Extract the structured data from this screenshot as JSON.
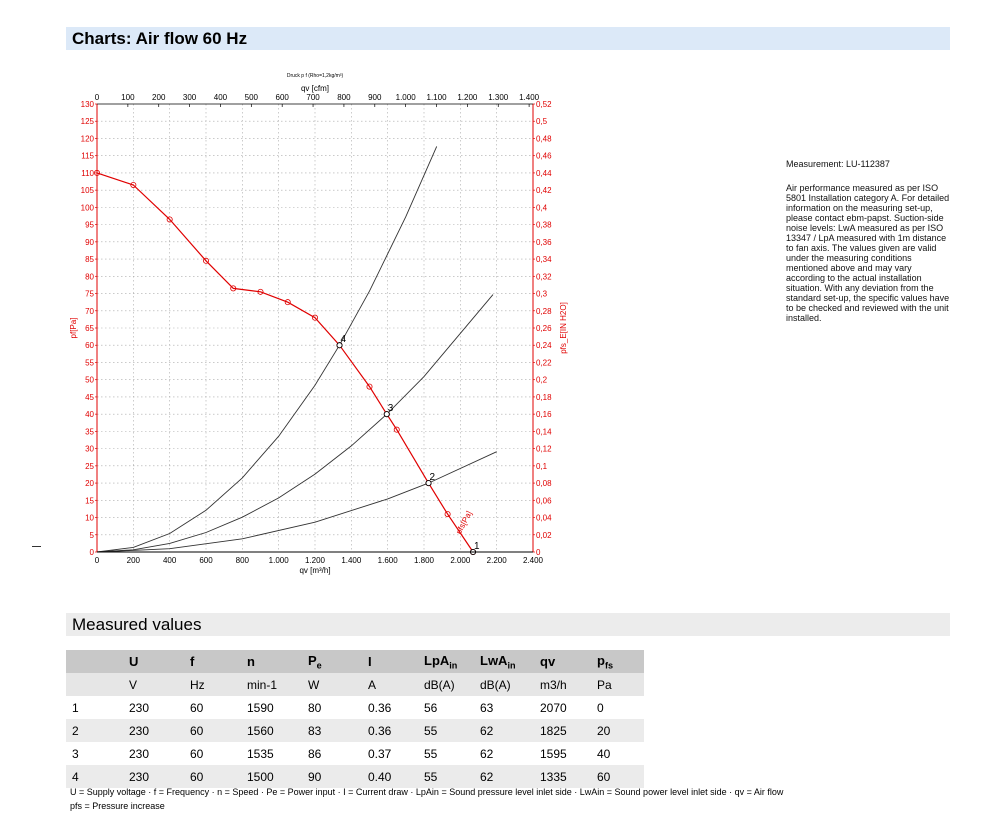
{
  "header": {
    "title": "Charts: Air flow 60 Hz"
  },
  "measured": {
    "title": "Measured values",
    "columns": [
      "",
      "U",
      "f",
      "n",
      "P",
      "I",
      "LpA",
      "LwA",
      "qv",
      "p"
    ],
    "column_subs": [
      "",
      "",
      "",
      "",
      "e",
      "",
      "in",
      "in",
      "",
      "fs"
    ],
    "units": [
      "",
      "V",
      "Hz",
      "min-1",
      "W",
      "A",
      "dB(A)",
      "dB(A)",
      "m3/h",
      "Pa"
    ],
    "rows": [
      [
        "1",
        "230",
        "60",
        "1590",
        "80",
        "0.36",
        "56",
        "63",
        "2070",
        "0"
      ],
      [
        "2",
        "230",
        "60",
        "1560",
        "83",
        "0.36",
        "55",
        "62",
        "1825",
        "20"
      ],
      [
        "3",
        "230",
        "60",
        "1535",
        "86",
        "0.37",
        "55",
        "62",
        "1595",
        "40"
      ],
      [
        "4",
        "230",
        "60",
        "1500",
        "90",
        "0.40",
        "55",
        "62",
        "1335",
        "60"
      ]
    ]
  },
  "notes": {
    "measurement": "Measurement: LU-112387",
    "description": "Air performance measured as per ISO 5801 Installation category A. For detailed information on the measuring set-up, please contact ebm-papst. Suction-side noise levels: LwA measured as per ISO 13347 / LpA measured with 1m distance to fan axis. The values given are valid under the measuring conditions mentioned above and may vary according to the actual installation situation. With any deviation from the standard set-up, the specific values have to be checked and reviewed with the unit installed."
  },
  "legend": {
    "line1": "U = Supply voltage · f = Frequency · n = Speed · Pe = Power input · I = Current draw · LpAin = Sound pressure level inlet side · LwAin = Sound power level inlet side · qv = Air flow",
    "line2": "pfs = Pressure increase"
  },
  "chart_data": {
    "type": "line",
    "title": "Druck p f (Rho=1,2kg/m³)",
    "xlabel": "qv [m³/h]",
    "xlabel_top": "qv [cfm]",
    "ylabel": "pf[Pa]",
    "ylabel_right": "pfs_E[IN H2O]",
    "xlim": [
      0,
      2400
    ],
    "ylim": [
      0,
      130
    ],
    "x_ticks": [
      "0",
      "200",
      "400",
      "600",
      "800",
      "1.000",
      "1.200",
      "1.400",
      "1.600",
      "1.800",
      "2.000",
      "2.200",
      "2.400"
    ],
    "x_top_ticks": [
      "0",
      "100",
      "200",
      "300",
      "400",
      "500",
      "600",
      "700",
      "800",
      "900",
      "1.000",
      "1.100",
      "1.200",
      "1.300",
      "1.400"
    ],
    "y_ticks": [
      "0",
      "5",
      "10",
      "15",
      "20",
      "25",
      "30",
      "35",
      "40",
      "45",
      "50",
      "55",
      "60",
      "65",
      "70",
      "75",
      "80",
      "85",
      "90",
      "95",
      "100",
      "105",
      "110",
      "115",
      "120",
      "125",
      "130"
    ],
    "y_right_ticks": [
      "0",
      "0,02",
      "0,04",
      "0,06",
      "0,08",
      "0,1",
      "0,12",
      "0,14",
      "0,16",
      "0,18",
      "0,2",
      "0,22",
      "0,24",
      "0,26",
      "0,28",
      "0,3",
      "0,32",
      "0,34",
      "0,36",
      "0,38",
      "0,4",
      "0,42",
      "0,44",
      "0,46",
      "0,48",
      "0,5",
      "0,52"
    ],
    "grid": true,
    "series": [
      {
        "name": "pfs[Pa]",
        "color": "#e00000",
        "x": [
          0,
          200,
          400,
          600,
          750,
          900,
          1050,
          1200,
          1335,
          1500,
          1595,
          1650,
          1825,
          1930,
          2070
        ],
        "y": [
          110,
          106.5,
          96.5,
          84.5,
          76.5,
          75.5,
          72.5,
          68,
          60,
          48,
          40,
          35.5,
          20,
          11,
          0
        ]
      }
    ],
    "system_curves": [
      {
        "label": "4",
        "x": [
          0,
          200,
          400,
          600,
          800,
          1000,
          1200,
          1335,
          1500,
          1700,
          1870
        ],
        "y": [
          0,
          1.34,
          5.38,
          12.1,
          21.5,
          33.6,
          48.4,
          60,
          75.7,
          97.3,
          117.7
        ]
      },
      {
        "label": "3",
        "x": [
          0,
          200,
          400,
          600,
          800,
          1000,
          1200,
          1400,
          1595,
          1800,
          2180
        ],
        "y": [
          0,
          0.63,
          2.51,
          5.66,
          10.1,
          15.7,
          22.6,
          30.8,
          40,
          50.9,
          74.7
        ]
      },
      {
        "label": "2",
        "x": [
          0,
          400,
          800,
          1200,
          1600,
          1825,
          2200
        ],
        "y": [
          0,
          0.96,
          3.84,
          8.65,
          15.4,
          20,
          29.1
        ]
      },
      {
        "label": "1",
        "x": [
          2070
        ],
        "y": [
          0
        ]
      }
    ],
    "operating_points": [
      {
        "label": "1",
        "x": 2070,
        "y": 0
      },
      {
        "label": "2",
        "x": 1825,
        "y": 20
      },
      {
        "label": "3",
        "x": 1595,
        "y": 40
      },
      {
        "label": "4",
        "x": 1335,
        "y": 60
      }
    ]
  }
}
